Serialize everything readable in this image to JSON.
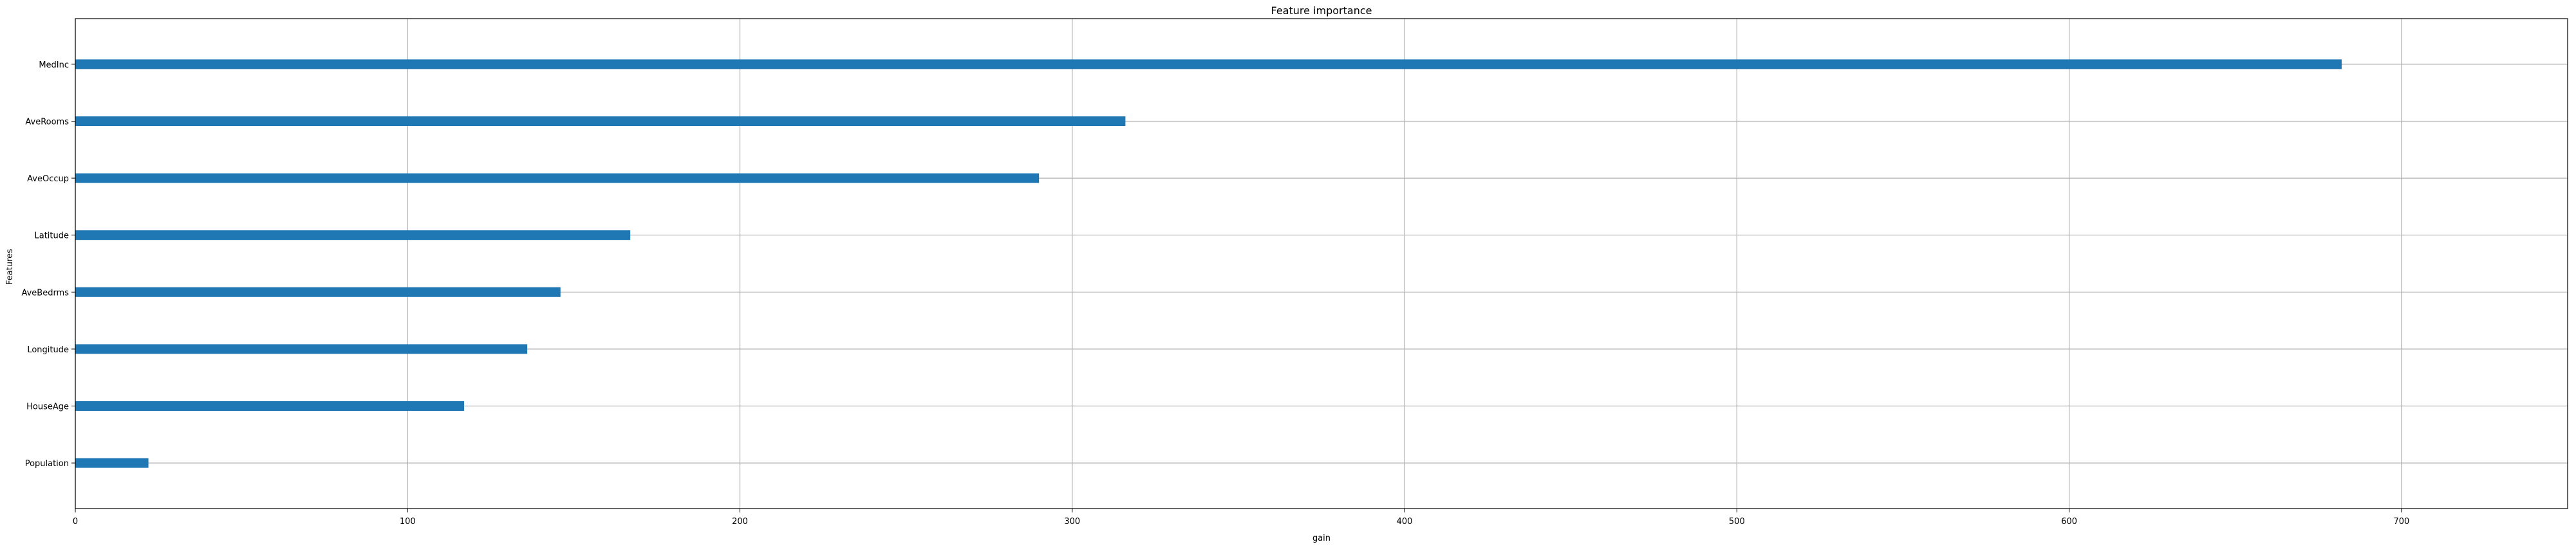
{
  "chart_data": {
    "type": "bar",
    "orientation": "horizontal",
    "title": "Feature importance",
    "xlabel": "gain",
    "ylabel": "Features",
    "categories": [
      "Population",
      "HouseAge",
      "Longitude",
      "AveBedrms",
      "Latitude",
      "AveOccup",
      "AveRooms",
      "MedInc"
    ],
    "values": [
      22,
      117,
      136,
      146,
      167,
      290,
      316,
      682
    ],
    "xlim": [
      0,
      750
    ],
    "xticks": [
      0,
      100,
      200,
      300,
      400,
      500,
      600,
      700
    ],
    "grid": true,
    "bar_color": "#1f77b4"
  }
}
